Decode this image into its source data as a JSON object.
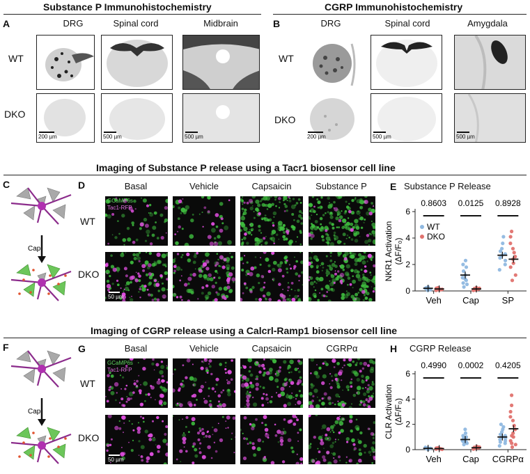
{
  "sectionA": {
    "title": "Substance P Immunohistochemistry",
    "label": "A",
    "columns": [
      "DRG",
      "Spinal cord",
      "Midbrain"
    ],
    "rows": [
      "WT",
      "DKO"
    ],
    "scalebars": [
      "200 µm",
      "500 µm",
      "500 µm"
    ]
  },
  "sectionB": {
    "title": "CGRP Immunohistochemistry",
    "label": "B",
    "columns": [
      "DRG",
      "Spinal cord",
      "Amygdala"
    ],
    "rows": [
      "WT",
      "DKO"
    ],
    "scalebars": [
      "200 µm",
      "500 µm",
      "500 µm"
    ]
  },
  "sectionSP": {
    "title": "Imaging of Substance P release using a Tacr1 biosensor cell line",
    "labelC": "C",
    "labelD": "D",
    "labelE": "E",
    "arrow_label": "Cap",
    "columns": [
      "Basal",
      "Vehicle",
      "Capsaicin",
      "Substance P"
    ],
    "rows": [
      "WT",
      "DKO"
    ],
    "channel1": "GCaMP6s",
    "channel2": "Tac1-RFP",
    "scalebar": "50 µm"
  },
  "sectionCGRP": {
    "title": "Imaging of CGRP release using a Calcrl-Ramp1 biosensor cell line",
    "labelF": "F",
    "labelG": "G",
    "labelH": "H",
    "arrow_label": "Cap",
    "columns": [
      "Basal",
      "Vehicle",
      "Capsaicin",
      "CGRPα"
    ],
    "rows": [
      "WT",
      "DKO"
    ],
    "channel1": "GCaMP6s",
    "channel2": "Tac1-RFP",
    "scalebar": "50 µm"
  },
  "colors": {
    "wt": "#8fb8e0",
    "dko": "#e0726e",
    "green": "#3fbf3f",
    "magenta": "#e04fe0"
  },
  "chart_data": [
    {
      "type": "scatter",
      "title": "Substance P Release",
      "ylabel": "NKR1 Activation",
      "ylabel2": "(ΔF/F₀)",
      "categories": [
        "Veh",
        "Cap",
        "SP"
      ],
      "ylim": [
        0,
        6
      ],
      "yticks": [
        0,
        2,
        4,
        6
      ],
      "pvalues": [
        "0.8603",
        "0.0125",
        "0.8928"
      ],
      "legend": [
        "WT",
        "DKO"
      ],
      "legend_position": "top-left",
      "series": [
        {
          "name": "WT",
          "means": [
            0.2,
            1.2,
            2.7
          ],
          "points": [
            [
              0.1,
              0.15,
              0.2,
              0.25,
              0.05,
              0.3,
              0.2,
              0.1,
              0.15,
              0.22
            ],
            [
              0.3,
              0.5,
              0.8,
              1.0,
              1.2,
              1.5,
              1.8,
              2.0,
              2.3,
              0.9,
              0.6
            ],
            [
              1.6,
              2.0,
              2.3,
              2.5,
              2.7,
              2.8,
              3.0,
              3.2,
              3.6,
              4.1
            ]
          ]
        },
        {
          "name": "DKO",
          "means": [
            0.15,
            0.15,
            2.4
          ],
          "points": [
            [
              0.05,
              0.1,
              0.15,
              0.2,
              0.1,
              0.25,
              0.12,
              0.18
            ],
            [
              0.05,
              0.1,
              0.15,
              0.2,
              0.1,
              0.25,
              0.12,
              0.18,
              0.08
            ],
            [
              0.8,
              1.2,
              1.8,
              2.1,
              2.4,
              2.6,
              2.9,
              3.2,
              3.6,
              4.1,
              4.5
            ]
          ]
        }
      ]
    },
    {
      "type": "scatter",
      "title": "CGRP Release",
      "ylabel": "CLR Activation",
      "ylabel2": "(ΔF/F₀)",
      "categories": [
        "Veh",
        "Cap",
        "CGRPα"
      ],
      "ylim": [
        0,
        6
      ],
      "yticks": [
        0,
        2,
        4,
        6
      ],
      "pvalues": [
        "0.4990",
        "0.0002",
        "0.4205"
      ],
      "series": [
        {
          "name": "WT",
          "means": [
            0.1,
            0.8,
            1.0
          ],
          "points": [
            [
              0.05,
              0.1,
              0.15,
              0.08,
              0.12,
              0.02,
              0.18,
              0.1,
              0.06,
              0.14
            ],
            [
              0.4,
              0.5,
              0.6,
              0.7,
              0.8,
              0.9,
              1.0,
              1.1,
              1.3,
              1.6,
              0.65
            ],
            [
              0.3,
              0.5,
              0.7,
              0.8,
              1.0,
              1.1,
              1.2,
              1.4,
              1.6,
              1.8,
              2.0,
              0.6,
              0.9
            ]
          ]
        },
        {
          "name": "DKO",
          "means": [
            0.08,
            0.15,
            1.65
          ],
          "points": [
            [
              0.05,
              0.08,
              0.1,
              0.12,
              0.06,
              0.15,
              0.03,
              0.1
            ],
            [
              0.05,
              0.1,
              0.15,
              0.2,
              0.08,
              0.12,
              0.25,
              0.18,
              0.1
            ],
            [
              0.2,
              0.4,
              0.7,
              1.0,
              1.3,
              1.6,
              1.9,
              2.3,
              2.6,
              3.0,
              3.5,
              4.3,
              1.1,
              0.5
            ]
          ]
        }
      ]
    }
  ]
}
